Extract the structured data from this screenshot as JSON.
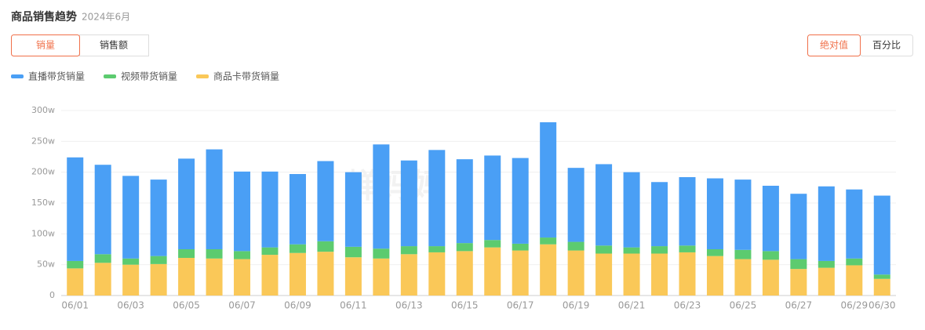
{
  "header": {
    "title": "商品销售趋势",
    "subtitle": "2024年6月"
  },
  "metric_tabs": [
    "销量",
    "销售额"
  ],
  "mode_tabs": [
    "绝对值",
    "百分比"
  ],
  "watermark": "蝉妈妈",
  "chart_data": {
    "type": "stacked_bar",
    "categories": [
      "06/01",
      null,
      "06/03",
      null,
      "06/05",
      null,
      "06/07",
      null,
      "06/09",
      null,
      "06/11",
      null,
      "06/13",
      null,
      "06/15",
      null,
      "06/17",
      null,
      "06/19",
      null,
      "06/21",
      null,
      "06/23",
      null,
      "06/25",
      null,
      "06/27",
      null,
      "06/29",
      "06/30"
    ],
    "series": [
      {
        "name": "直播带货销量",
        "color": "#4a9ff5",
        "values": [
          168,
          145,
          134,
          124,
          147,
          162,
          129,
          123,
          114,
          130,
          121,
          169,
          139,
          156,
          136,
          137,
          139,
          187,
          120,
          132,
          122,
          104,
          111,
          115,
          114,
          106,
          106,
          121,
          112,
          128
        ]
      },
      {
        "name": "视频带货销量",
        "color": "#5ccb6f",
        "values": [
          12,
          14,
          10,
          13,
          14,
          15,
          13,
          12,
          14,
          17,
          17,
          16,
          13,
          10,
          13,
          12,
          11,
          11,
          14,
          13,
          10,
          12,
          11,
          11,
          15,
          14,
          16,
          11,
          11,
          7
        ]
      },
      {
        "name": "商品卡带货销量",
        "color": "#fac858",
        "values": [
          44,
          53,
          50,
          51,
          61,
          60,
          59,
          66,
          69,
          71,
          62,
          60,
          67,
          70,
          72,
          78,
          73,
          83,
          73,
          68,
          68,
          68,
          70,
          64,
          59,
          58,
          43,
          45,
          49,
          27
        ]
      }
    ],
    "ylim": [
      0,
      300
    ],
    "yticks": [
      {
        "value": 0,
        "label": "0"
      },
      {
        "value": 50,
        "label": "50w"
      },
      {
        "value": 100,
        "label": "100w"
      },
      {
        "value": 150,
        "label": "150w"
      },
      {
        "value": 200,
        "label": "200w"
      },
      {
        "value": 250,
        "label": "250w"
      },
      {
        "value": 300,
        "label": "300w"
      }
    ],
    "grid": true
  }
}
